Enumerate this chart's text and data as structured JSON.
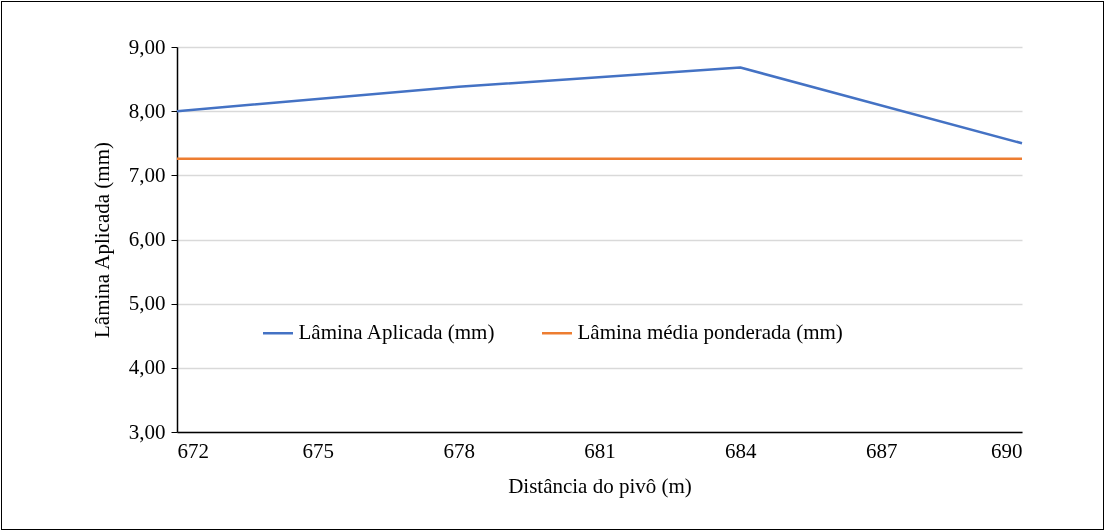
{
  "chart_data": {
    "type": "line",
    "xlabel": "Distância do pivô (m)",
    "ylabel": "Lâmina Aplicada (mm)",
    "xlim": [
      672,
      690
    ],
    "xticks": [
      672,
      675,
      678,
      681,
      684,
      687,
      690
    ],
    "ylim": [
      3,
      9
    ],
    "yticks": [
      {
        "value": 3,
        "label": "3,00"
      },
      {
        "value": 4,
        "label": "4,00"
      },
      {
        "value": 5,
        "label": "5,00"
      },
      {
        "value": 6,
        "label": "6,00"
      },
      {
        "value": 7,
        "label": "7,00"
      },
      {
        "value": 8,
        "label": "8,00"
      },
      {
        "value": 9,
        "label": "9,00"
      }
    ],
    "grid": "y",
    "legend": "bottom",
    "marker": "none",
    "line_style": "solid",
    "series": [
      {
        "name": "Lâmina Aplicada (mm)",
        "color": "#4472c4",
        "x": [
          672,
          678,
          684,
          690
        ],
        "values": [
          8.0,
          8.38,
          8.68,
          7.5
        ]
      },
      {
        "name": "Lâmina média ponderada (mm)",
        "color": "#ed7d31",
        "x": [
          672,
          690
        ],
        "values": [
          7.26,
          7.26
        ]
      }
    ]
  }
}
